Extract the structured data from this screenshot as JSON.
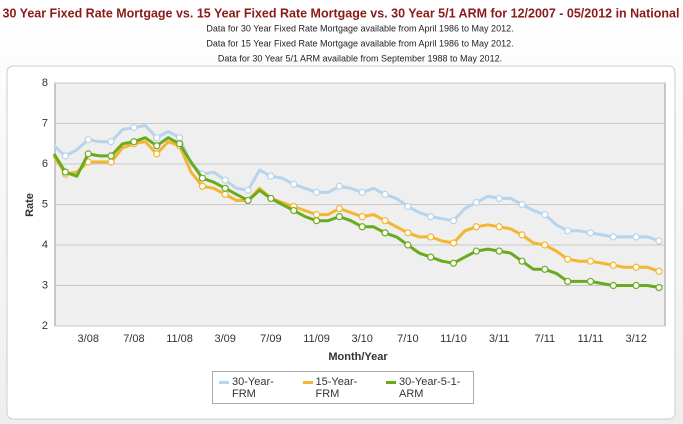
{
  "chart_data": {
    "type": "line",
    "title": "30 Year Fixed Rate Mortgage vs. 15 Year Fixed Rate Mortgage vs. 30 Year 5/1 ARM for 12/2007 - 05/2012 in National",
    "subtitles": [
      "Data for 30 Year Fixed Rate Mortgage available from April 1986 to May 2012.",
      "Data for 15 Year Fixed Rate Mortgage available from April 1986 to May 2012.",
      "Data for 30 Year 5/1 ARM available from September 1988 to May 2012."
    ],
    "x_label": "Month/Year",
    "y_label": "Rate",
    "categories": [
      null,
      null,
      null,
      "3/08",
      null,
      null,
      null,
      "7/08",
      null,
      null,
      null,
      "11/08",
      null,
      null,
      null,
      "3/09",
      null,
      null,
      null,
      "7/09",
      null,
      null,
      null,
      "11/09",
      null,
      null,
      null,
      "3/10",
      null,
      null,
      null,
      "7/10",
      null,
      null,
      null,
      "11/10",
      null,
      null,
      null,
      "3/11",
      null,
      null,
      null,
      "7/11",
      null,
      null,
      null,
      "11/11",
      null,
      null,
      null,
      "3/12",
      null,
      null
    ],
    "ylim": [
      2,
      8
    ],
    "yticks": [
      2,
      3,
      4,
      5,
      6,
      7,
      8
    ],
    "grid": true,
    "series": [
      {
        "name": "30-Year-FRM",
        "color": "#b8d4ea",
        "values": [
          6.45,
          6.2,
          6.35,
          6.6,
          6.55,
          6.55,
          6.85,
          6.9,
          6.95,
          6.65,
          6.8,
          6.65,
          6.0,
          5.75,
          5.8,
          5.6,
          5.4,
          5.35,
          5.85,
          5.7,
          5.65,
          5.5,
          5.4,
          5.3,
          5.3,
          5.45,
          5.4,
          5.3,
          5.4,
          5.25,
          5.15,
          4.95,
          4.8,
          4.7,
          4.65,
          4.6,
          4.9,
          5.05,
          5.2,
          5.15,
          5.15,
          5.0,
          4.85,
          4.75,
          4.5,
          4.35,
          4.35,
          4.3,
          4.25,
          4.2,
          4.2,
          4.2,
          4.2,
          4.1
        ]
      },
      {
        "name": "15-Year-FRM",
        "color": "#f2b632",
        "values": [
          6.2,
          5.75,
          5.8,
          6.05,
          6.05,
          6.05,
          6.4,
          6.5,
          6.55,
          6.25,
          6.55,
          6.45,
          5.8,
          5.45,
          5.4,
          5.25,
          5.1,
          5.1,
          5.4,
          5.15,
          5.05,
          4.95,
          4.85,
          4.75,
          4.75,
          4.9,
          4.8,
          4.7,
          4.75,
          4.6,
          4.45,
          4.3,
          4.2,
          4.2,
          4.1,
          4.05,
          4.35,
          4.45,
          4.5,
          4.45,
          4.4,
          4.25,
          4.05,
          4.0,
          3.85,
          3.65,
          3.6,
          3.6,
          3.55,
          3.5,
          3.45,
          3.45,
          3.45,
          3.35
        ]
      },
      {
        "name": "30-Year-5-1-ARM",
        "color": "#6aaa1e",
        "values": [
          6.25,
          5.8,
          5.7,
          6.25,
          6.2,
          6.2,
          6.5,
          6.55,
          6.65,
          6.45,
          6.65,
          6.5,
          6.05,
          5.65,
          5.55,
          5.4,
          5.25,
          5.1,
          5.35,
          5.15,
          5.0,
          4.85,
          4.7,
          4.6,
          4.6,
          4.7,
          4.6,
          4.45,
          4.45,
          4.3,
          4.2,
          4.0,
          3.8,
          3.7,
          3.6,
          3.55,
          3.7,
          3.85,
          3.9,
          3.85,
          3.8,
          3.6,
          3.4,
          3.4,
          3.3,
          3.1,
          3.1,
          3.1,
          3.05,
          3.0,
          3.0,
          3.0,
          3.0,
          2.95
        ]
      }
    ]
  }
}
